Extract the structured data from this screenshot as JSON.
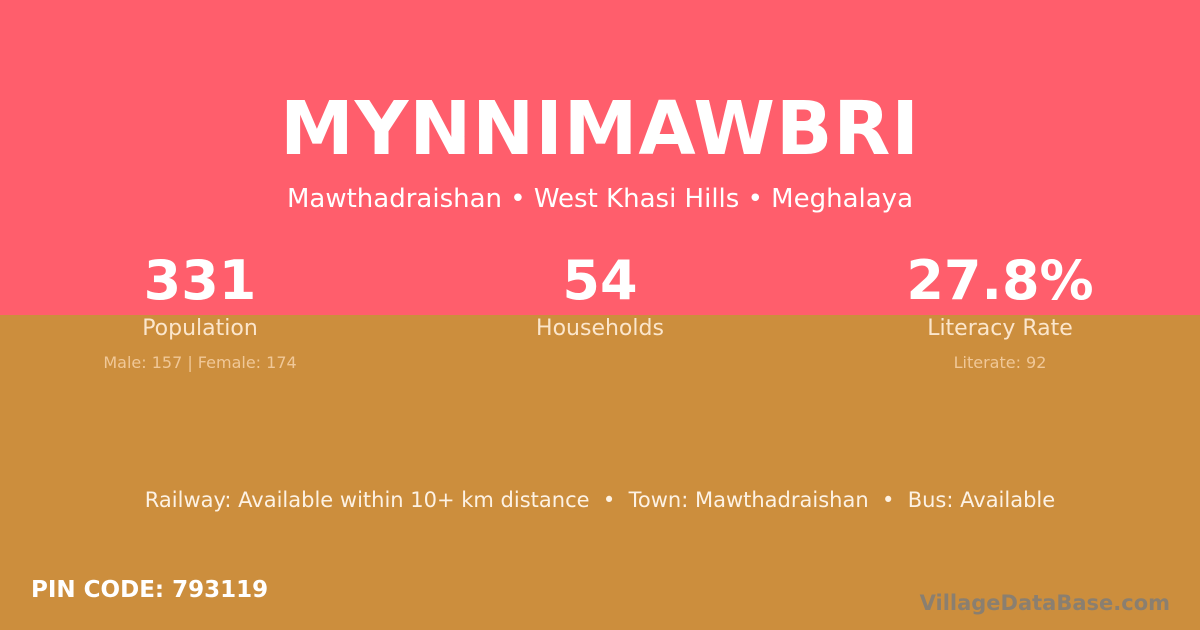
{
  "colors": {
    "top_background": "#FF5E6C",
    "bottom_background": "#CC8E3D"
  },
  "village": {
    "name": "MYNNIMAWBRI",
    "location": "Mawthadraishan • West Khasi Hills • Meghalaya"
  },
  "stats": [
    {
      "value": "331",
      "label": "Population",
      "detail": "Male: 157 | Female: 174"
    },
    {
      "value": "54",
      "label": "Households",
      "detail": ""
    },
    {
      "value": "27.8%",
      "label": "Literacy Rate",
      "detail": "Literate: 92"
    }
  ],
  "amenities": "Railway: Available within 10+ km distance  •  Town: Mawthadraishan  •  Bus: Available",
  "pin_code": "PIN CODE: 793119",
  "brand": "VillageDataBase.com"
}
